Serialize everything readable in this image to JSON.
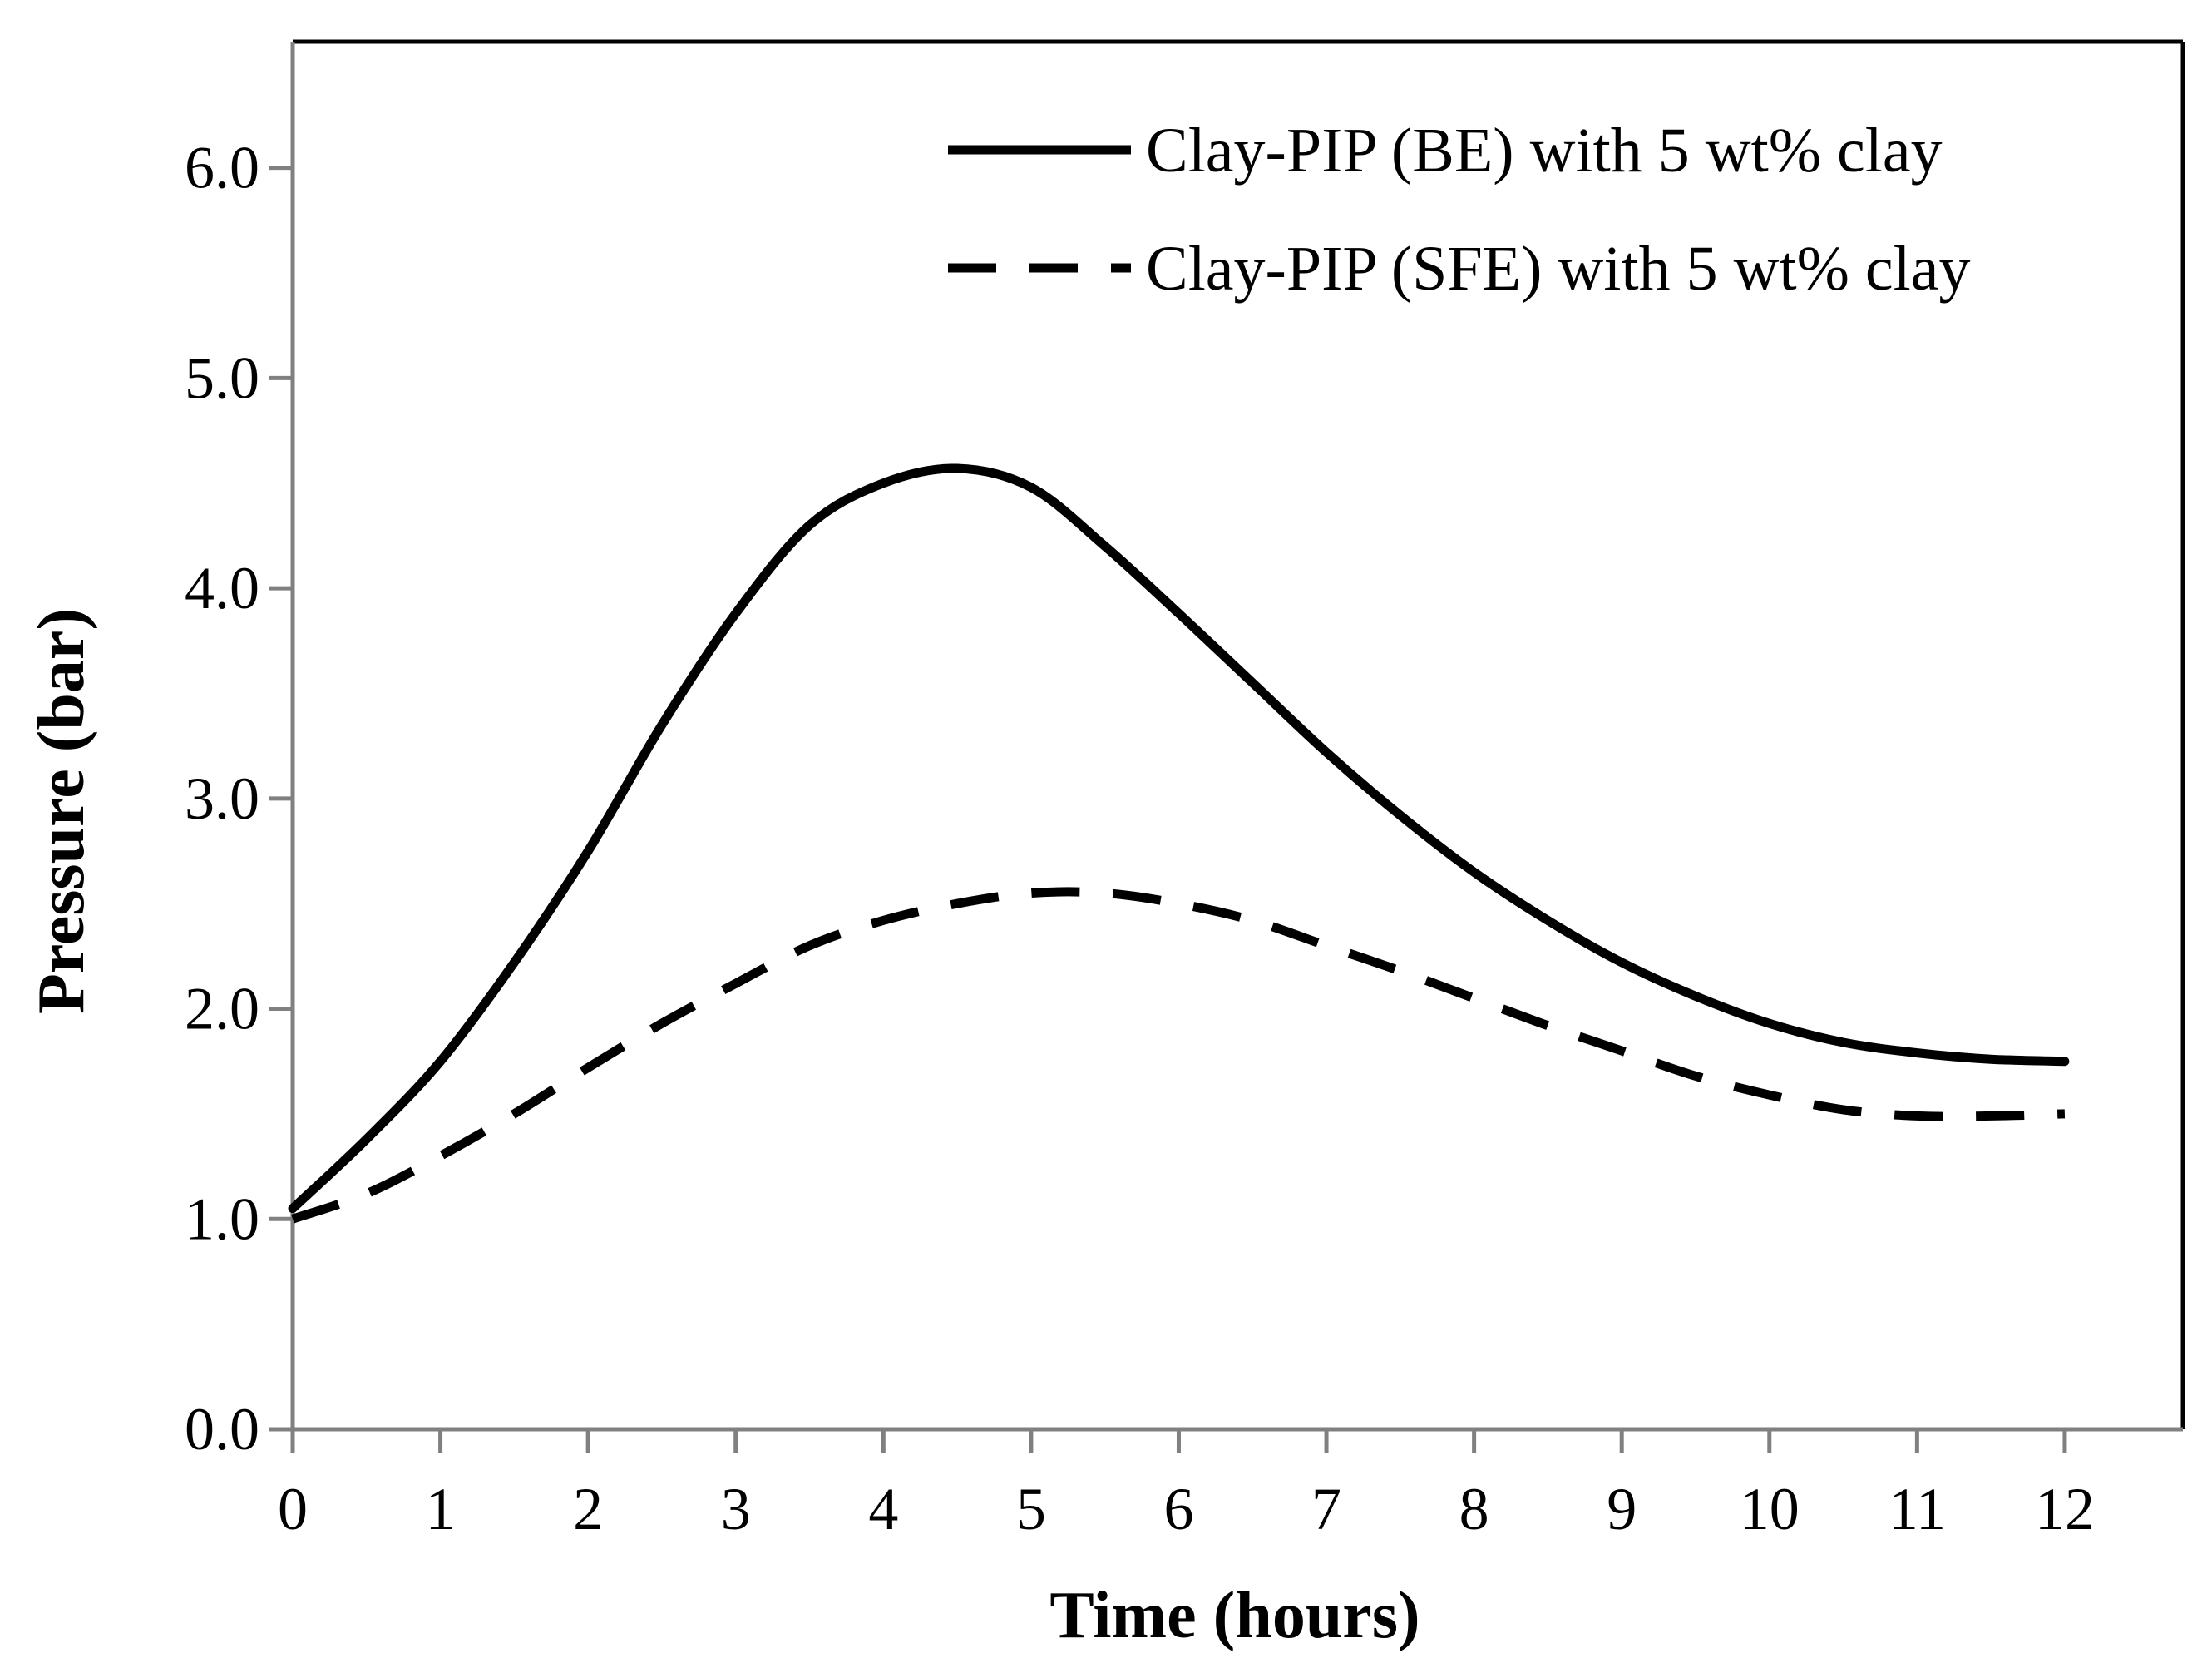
{
  "chart_data": {
    "type": "line",
    "title": "",
    "xlabel": "Time (hours)",
    "ylabel": "Pressure (bar)",
    "xlim": [
      0,
      12.8
    ],
    "ylim": [
      0,
      6.6
    ],
    "x_ticks": [
      0,
      1,
      2,
      3,
      4,
      5,
      6,
      7,
      8,
      9,
      10,
      11,
      12
    ],
    "x_tick_labels": [
      "0",
      "1",
      "2",
      "3",
      "4",
      "5",
      "6",
      "7",
      "8",
      "9",
      "10",
      "11",
      "12"
    ],
    "y_ticks": [
      0,
      1,
      2,
      3,
      4,
      5,
      6
    ],
    "y_tick_labels": [
      "0.0",
      "1.0",
      "2.0",
      "3.0",
      "4.0",
      "5.0",
      "6.0"
    ],
    "grid": false,
    "legend_position": "top-right",
    "colors": {
      "line": "#000000",
      "axis": "#808080",
      "frame": "#000000"
    },
    "series": [
      {
        "name": "Clay-PIP (BE) with 5 wt% clay",
        "style": "solid",
        "x": [
          0,
          0.5,
          1,
          1.5,
          2,
          2.5,
          3,
          3.5,
          4,
          4.5,
          5,
          5.5,
          6,
          6.5,
          7,
          7.5,
          8,
          8.5,
          9,
          9.5,
          10,
          10.5,
          11,
          11.5,
          12
        ],
        "values": [
          1.05,
          1.38,
          1.75,
          2.22,
          2.75,
          3.35,
          3.88,
          4.3,
          4.5,
          4.57,
          4.48,
          4.2,
          3.88,
          3.55,
          3.22,
          2.92,
          2.65,
          2.42,
          2.22,
          2.06,
          1.93,
          1.84,
          1.79,
          1.76,
          1.75
        ]
      },
      {
        "name": "Clay-PIP (SFE) with 5 wt% clay",
        "style": "dashed",
        "x": [
          0,
          0.5,
          1,
          1.5,
          2,
          2.5,
          3,
          3.5,
          4,
          4.5,
          5,
          5.5,
          6,
          6.5,
          7,
          7.5,
          8,
          8.5,
          9,
          9.5,
          10,
          10.5,
          11,
          11.5,
          12
        ],
        "values": [
          1.0,
          1.12,
          1.3,
          1.5,
          1.72,
          1.93,
          2.12,
          2.3,
          2.42,
          2.5,
          2.55,
          2.55,
          2.5,
          2.42,
          2.3,
          2.18,
          2.05,
          1.92,
          1.8,
          1.68,
          1.59,
          1.52,
          1.49,
          1.49,
          1.5
        ]
      }
    ]
  }
}
